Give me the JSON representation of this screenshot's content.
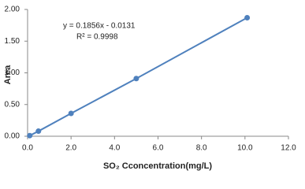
{
  "chart_data": {
    "type": "scatter",
    "x_label": "SO₂ Cconcentration(mg/L)",
    "y_label": "Area",
    "annotations": [
      "y = 0.1856x - 0.0131",
      "R² = 0.9998"
    ],
    "series": [
      {
        "name": "Area",
        "color": "#4f81bd",
        "x": [
          0.1,
          0.5,
          2.0,
          5.0,
          10.1
        ],
        "values": [
          0.01,
          0.08,
          0.36,
          0.91,
          1.87
        ]
      }
    ],
    "xlim": [
      0,
      12
    ],
    "ylim": [
      0,
      2
    ],
    "xticks": [
      {
        "value": 0,
        "label": "0.0"
      },
      {
        "value": 2,
        "label": "2.0"
      },
      {
        "value": 4,
        "label": "4.0"
      },
      {
        "value": 6,
        "label": "6.0"
      },
      {
        "value": 8,
        "label": "8.0"
      },
      {
        "value": 10,
        "label": "10.0"
      },
      {
        "value": 12,
        "label": "12.0"
      }
    ],
    "yticks": [
      {
        "value": 0,
        "label": "0.00"
      },
      {
        "value": 0.5,
        "label": "0.50"
      },
      {
        "value": 1,
        "label": "1.00"
      },
      {
        "value": 1.5,
        "label": "1.50"
      },
      {
        "value": 2,
        "label": "2.00"
      }
    ]
  }
}
